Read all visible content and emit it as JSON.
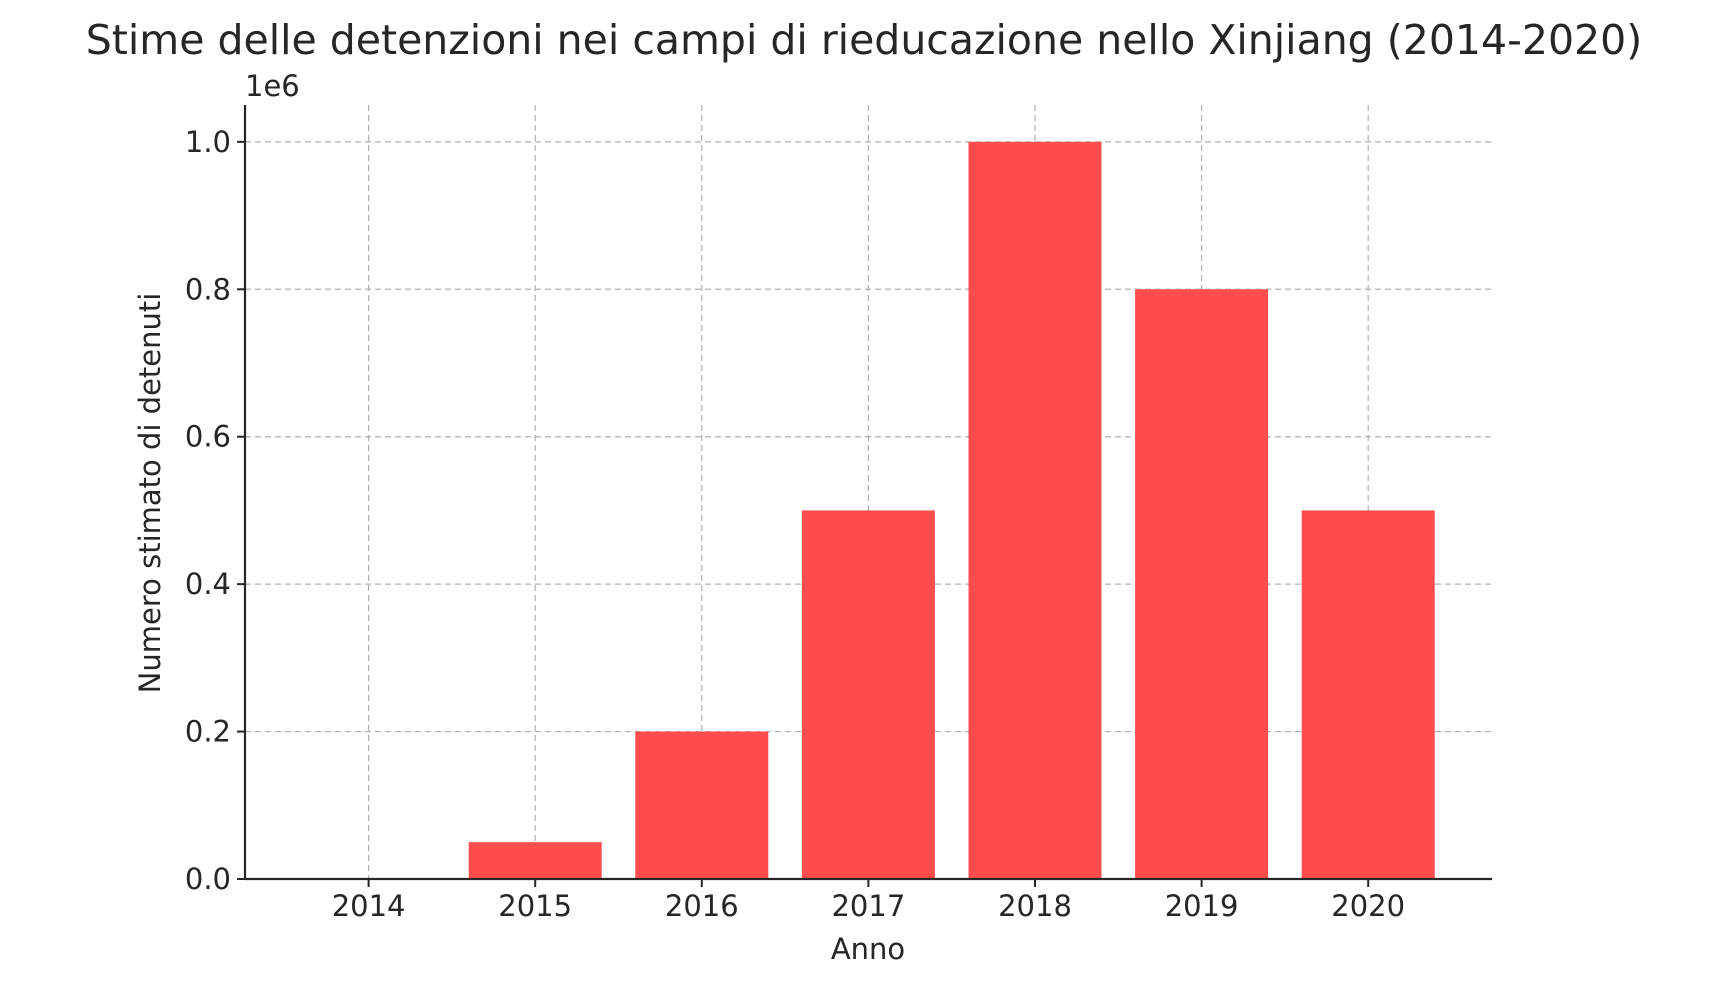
{
  "chart_data": {
    "type": "bar",
    "title": "Stime delle detenzioni nei campi di rieducazione nello Xinjiang (2014-2020)",
    "xlabel": "Anno",
    "ylabel": "Numero stimato di detenuti",
    "y_offset_label": "1e6",
    "categories": [
      "2014",
      "2015",
      "2016",
      "2017",
      "2018",
      "2019",
      "2020"
    ],
    "values": [
      0,
      50000,
      200000,
      500000,
      1000000,
      800000,
      500000
    ],
    "ylim": [
      0,
      1050000
    ],
    "yticks": [
      0,
      200000,
      400000,
      600000,
      800000,
      1000000
    ],
    "ytick_labels": [
      "0.0",
      "0.2",
      "0.4",
      "0.6",
      "0.8",
      "1.0"
    ],
    "grid": true,
    "colors": {
      "bar": "#ff4c4c",
      "grid": "#b0b0b0",
      "axis": "#262626"
    }
  }
}
